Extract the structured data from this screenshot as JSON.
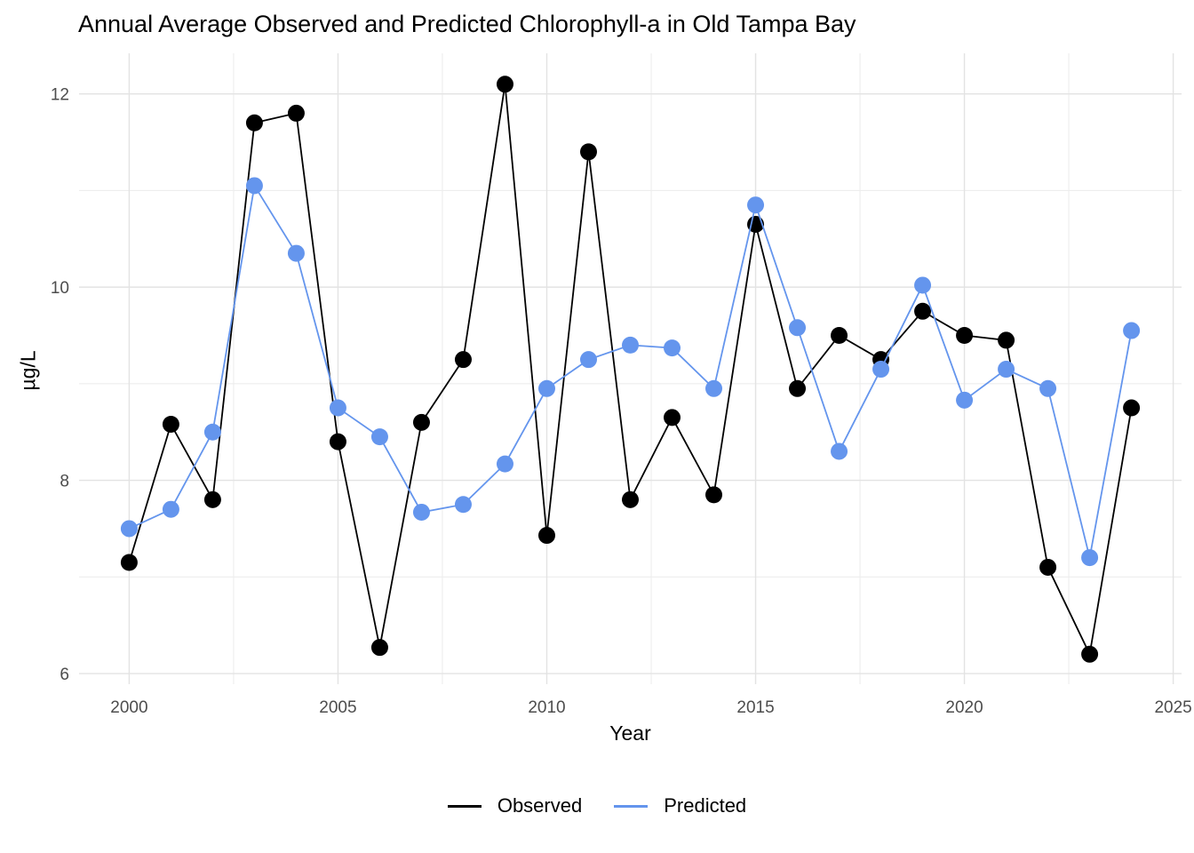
{
  "chart_data": {
    "type": "line",
    "title": "Annual Average Observed and Predicted Chlorophyll-a in Old Tampa Bay",
    "xlabel": "Year",
    "ylabel": "µg/L",
    "x": [
      2000,
      2001,
      2002,
      2003,
      2004,
      2005,
      2006,
      2007,
      2008,
      2009,
      2010,
      2011,
      2012,
      2013,
      2014,
      2015,
      2016,
      2017,
      2018,
      2019,
      2020,
      2021,
      2022,
      2023,
      2024
    ],
    "series": [
      {
        "name": "Observed",
        "color": "#000000",
        "values": [
          7.15,
          8.58,
          7.8,
          11.7,
          11.8,
          8.4,
          6.27,
          8.6,
          9.25,
          12.1,
          7.43,
          11.4,
          7.8,
          8.65,
          7.85,
          10.65,
          8.95,
          9.5,
          9.25,
          9.75,
          9.5,
          9.45,
          7.1,
          6.2,
          8.75
        ]
      },
      {
        "name": "Predicted",
        "color": "#6495ED",
        "values": [
          7.5,
          7.7,
          8.5,
          11.05,
          10.35,
          8.75,
          8.45,
          7.67,
          7.75,
          8.17,
          8.95,
          9.25,
          9.4,
          9.37,
          8.95,
          10.85,
          9.58,
          8.3,
          9.15,
          10.02,
          8.83,
          9.15,
          8.95,
          7.2,
          9.55
        ]
      }
    ],
    "xlim": [
      1998.8,
      2025.2
    ],
    "ylim": [
      5.89,
      12.42
    ],
    "x_ticks_major": [
      2000,
      2005,
      2010,
      2015,
      2020,
      2025
    ],
    "x_ticks_minor": [
      2002.5,
      2007.5,
      2012.5,
      2017.5,
      2022.5
    ],
    "y_ticks_major": [
      6,
      8,
      10,
      12
    ],
    "y_ticks_minor": [
      7,
      9,
      11
    ],
    "grid": "on",
    "legend_position": "bottom",
    "legend": {
      "items": [
        {
          "label": "Observed",
          "color": "#000000"
        },
        {
          "label": "Predicted",
          "color": "#6495ED"
        }
      ]
    },
    "colors": {
      "background": "#FFFFFF",
      "grid_major": "#E3E3E3",
      "grid_minor": "#EDEDED",
      "tick_label": "#4D4D4D",
      "text": "#000000"
    }
  }
}
